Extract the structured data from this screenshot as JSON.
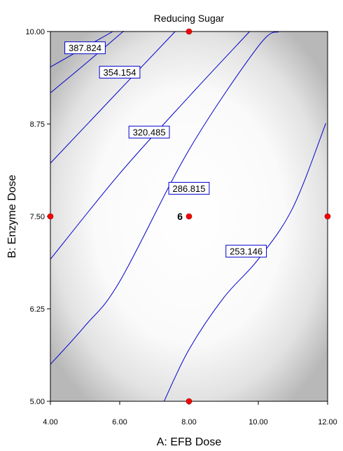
{
  "chart_data": {
    "type": "contour",
    "title": "Reducing Sugar",
    "xlabel": "A: EFB Dose",
    "ylabel": "B: Enzyme Dose",
    "xlim": [
      4,
      12
    ],
    "ylim": [
      5,
      10
    ],
    "xticks": [
      4,
      6,
      8,
      10,
      12
    ],
    "xtick_labels": [
      "4.00",
      "6.00",
      "8.00",
      "10.00",
      "12.00"
    ],
    "yticks": [
      5,
      6.25,
      7.5,
      8.75,
      10
    ],
    "ytick_labels": [
      "5.00",
      "6.25",
      "7.50",
      "8.75",
      "10.00"
    ],
    "contours": [
      {
        "label": "387.824",
        "points": [
          [
            4.0,
            9.52
          ],
          [
            5.8,
            10.0
          ]
        ],
        "label_at": [
          5.0,
          9.78
        ]
      },
      {
        "label": "354.154",
        "points": [
          [
            4.0,
            9.17
          ],
          [
            5.0,
            9.56
          ],
          [
            6.0,
            9.96
          ],
          [
            6.1,
            10.0
          ]
        ],
        "label_at": [
          6.0,
          9.45
        ]
      },
      {
        "label": "320.485",
        "points": [
          [
            4.0,
            8.22
          ],
          [
            6.0,
            9.21
          ],
          [
            7.6,
            10.0
          ]
        ],
        "label_at": [
          6.85,
          8.64
        ]
      },
      {
        "label": "286.815",
        "points": [
          [
            4.0,
            6.92
          ],
          [
            6.0,
            8.08
          ],
          [
            8.0,
            9.12
          ],
          [
            9.75,
            10.0
          ]
        ],
        "label_at": [
          8.0,
          7.88
        ]
      },
      {
        "label": "253.146",
        "points": [
          [
            4.0,
            5.5
          ],
          [
            5.0,
            6.02
          ],
          [
            6.0,
            6.62
          ],
          [
            8.0,
            8.4
          ],
          [
            10.0,
            9.8
          ],
          [
            10.6,
            10.0
          ]
        ],
        "label_at": [
          9.65,
          7.03
        ]
      },
      {
        "label": "",
        "points": [
          [
            7.28,
            5.0
          ],
          [
            8.0,
            5.7
          ],
          [
            9.0,
            6.4
          ],
          [
            10.0,
            6.92
          ],
          [
            11.0,
            7.62
          ],
          [
            11.95,
            8.76
          ]
        ],
        "label_at": null
      }
    ],
    "design_points": [
      {
        "x": 8,
        "y": 10
      },
      {
        "x": 4,
        "y": 7.5
      },
      {
        "x": 8,
        "y": 7.5
      },
      {
        "x": 12,
        "y": 7.5
      },
      {
        "x": 8,
        "y": 5
      }
    ],
    "center_point_count": "6",
    "background": "gray-to-white gradient (prediction standard error shading)",
    "line_color": "#0000cc",
    "point_color": "#ff0000",
    "grid": false
  }
}
